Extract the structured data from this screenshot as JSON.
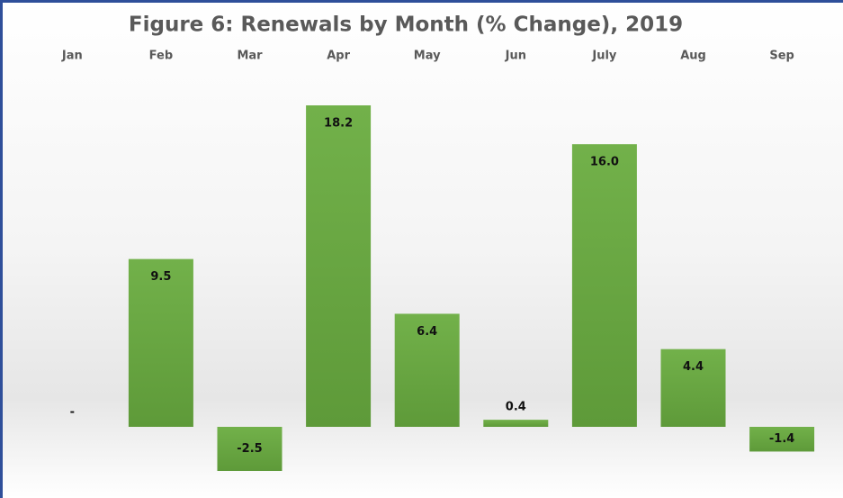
{
  "chart_data": {
    "type": "bar",
    "title": "Figure 6: Renewals by Month (% Change), 2019",
    "categories": [
      "Jan",
      "Feb",
      "Mar",
      "Apr",
      "May",
      "Jun",
      "July",
      "Aug",
      "Sep"
    ],
    "values": [
      null,
      9.5,
      -2.5,
      18.2,
      6.4,
      0.4,
      16.0,
      4.4,
      -1.4
    ],
    "value_labels": [
      "-",
      "9.5",
      "-2.5",
      "18.2",
      "6.4",
      "0.4",
      "16.0",
      "4.4",
      "-1.4"
    ],
    "color": "#6aa842"
  }
}
